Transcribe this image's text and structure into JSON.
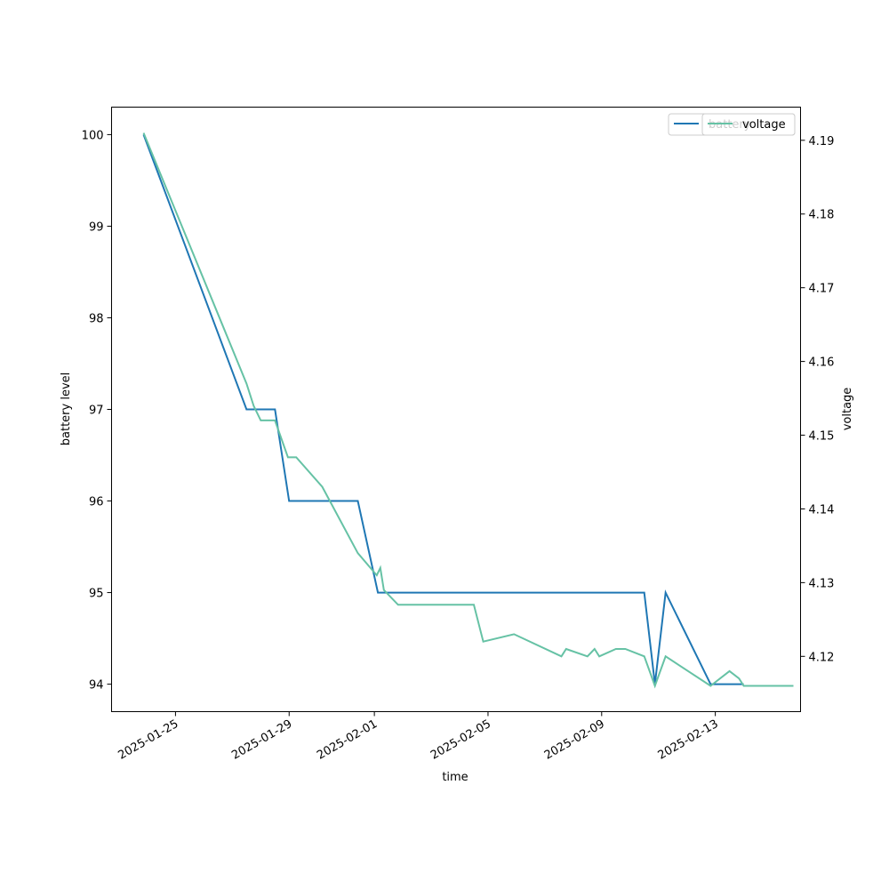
{
  "chart_data": {
    "type": "line",
    "xlabel": "time",
    "ylabel_left": "battery level",
    "ylabel_right": "voltage",
    "x_tick_labels": [
      "2025-01-25",
      "2025-01-29",
      "2025-02-01",
      "2025-02-05",
      "2025-02-09",
      "2025-02-13"
    ],
    "left_y_ticks": [
      94,
      95,
      96,
      97,
      98,
      99,
      100
    ],
    "right_y_ticks": [
      4.12,
      4.13,
      4.14,
      4.15,
      4.16,
      4.17,
      4.18,
      4.19
    ],
    "left_ylim": [
      93.7,
      100.3
    ],
    "right_ylim": [
      4.1125,
      4.1945
    ],
    "xlim": [
      "2025-01-22 18:00",
      "2025-02-16 00:00"
    ],
    "grid": false,
    "legend_position": "top-right",
    "colors": {
      "battery": "#1f77b4",
      "voltage": "#66c2a5"
    },
    "series": [
      {
        "name": "battery",
        "axis": "left",
        "x": [
          "2025-01-23 21:00",
          "2025-01-27 12:00",
          "2025-01-28 12:00",
          "2025-01-29 00:00",
          "2025-01-31 10:00",
          "2025-02-01 03:00",
          "2025-02-10 12:00",
          "2025-02-10 21:00",
          "2025-02-11 06:00",
          "2025-02-12 20:00",
          "2025-02-14 00:00"
        ],
        "values": [
          100,
          97,
          97,
          96,
          96,
          95,
          95,
          94,
          95,
          94,
          94
        ]
      },
      {
        "name": "voltage",
        "axis": "right",
        "x": [
          "2025-01-23 21:00",
          "2025-01-27 12:00",
          "2025-01-27 18:00",
          "2025-01-28 00:00",
          "2025-01-28 12:00",
          "2025-01-28 23:00",
          "2025-01-29 06:00",
          "2025-01-30 04:00",
          "2025-01-31 10:00",
          "2025-02-01 02:00",
          "2025-02-01 05:00",
          "2025-02-01 08:00",
          "2025-02-01 20:00",
          "2025-02-04 12:00",
          "2025-02-04 20:00",
          "2025-02-05 22:00",
          "2025-02-07 14:00",
          "2025-02-07 18:00",
          "2025-02-08 12:00",
          "2025-02-08 18:00",
          "2025-02-08 22:00",
          "2025-02-09 12:00",
          "2025-02-09 20:00",
          "2025-02-10 12:00",
          "2025-02-10 21:00",
          "2025-02-11 06:00",
          "2025-02-12 20:00",
          "2025-02-13 12:00",
          "2025-02-13 20:00",
          "2025-02-14 00:00",
          "2025-02-15 18:00"
        ],
        "values": [
          4.191,
          4.157,
          4.154,
          4.152,
          4.152,
          4.147,
          4.147,
          4.143,
          4.134,
          4.131,
          4.132,
          4.129,
          4.127,
          4.127,
          4.122,
          4.123,
          4.12,
          4.121,
          4.12,
          4.121,
          4.12,
          4.121,
          4.121,
          4.12,
          4.116,
          4.12,
          4.116,
          4.118,
          4.117,
          4.116,
          4.116
        ]
      }
    ]
  }
}
